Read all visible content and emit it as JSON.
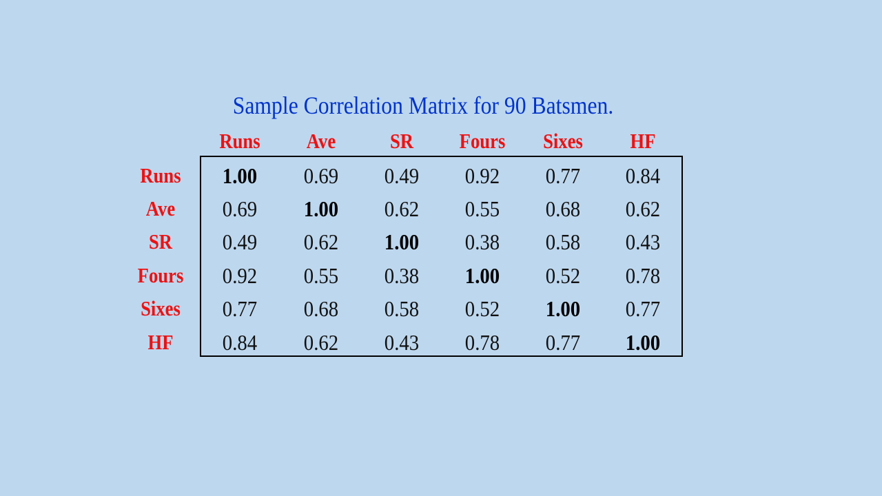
{
  "slide": {
    "background_color": "#bdd7ee",
    "title_color": "#0033cc",
    "header_color": "#ee1111"
  },
  "chart_data": {
    "type": "table",
    "title": "Sample Correlation Matrix for 90 Batsmen.",
    "columns": [
      "Runs",
      "Ave",
      "SR",
      "Fours",
      "Sixes",
      "HF"
    ],
    "rows": [
      {
        "label": "Runs",
        "values": [
          "1.00",
          "0.69",
          "0.49",
          "0.92",
          "0.77",
          "0.84"
        ]
      },
      {
        "label": "Ave",
        "values": [
          "0.69",
          "1.00",
          "0.62",
          "0.55",
          "0.68",
          "0.62"
        ]
      },
      {
        "label": "SR",
        "values": [
          "0.49",
          "0.62",
          "1.00",
          "0.38",
          "0.58",
          "0.43"
        ]
      },
      {
        "label": "Fours",
        "values": [
          "0.92",
          "0.55",
          "0.38",
          "1.00",
          "0.52",
          "0.78"
        ]
      },
      {
        "label": "Sixes",
        "values": [
          "0.77",
          "0.68",
          "0.58",
          "0.52",
          "1.00",
          "0.77"
        ]
      },
      {
        "label": "HF",
        "values": [
          "0.84",
          "0.62",
          "0.43",
          "0.78",
          "0.77",
          "1.00"
        ]
      }
    ],
    "diagonal_emphasis": "bold",
    "border": "box around values"
  }
}
